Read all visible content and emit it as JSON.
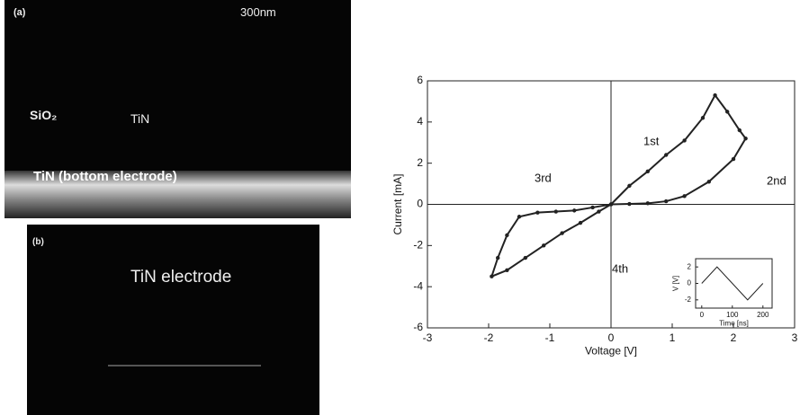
{
  "images": [
    {
      "label": "(a)",
      "scale": "300nm",
      "texts": [
        "SiO₂",
        "TiN",
        "TiN (bottom electrode)"
      ]
    },
    {
      "label": "(b)",
      "texts": [
        "TiN electrode"
      ]
    }
  ],
  "chart_data": [
    {
      "type": "line",
      "xlabel": "Voltage [V]",
      "ylabel": "Current [mA]",
      "x": [
        0,
        0.3,
        0.6,
        0.9,
        1.2,
        1.5,
        1.7,
        1.9,
        2.1,
        2.2,
        2.0,
        1.6,
        1.2,
        0.9,
        0.6,
        0.3,
        0,
        -0.3,
        -0.6,
        -0.9,
        -1.2,
        -1.5,
        -1.7,
        -1.85,
        -1.95,
        -1.7,
        -1.4,
        -1.1,
        -0.8,
        -0.5,
        -0.2,
        0
      ],
      "series": [
        {
          "color": "#222222",
          "values": [
            0,
            0.9,
            1.6,
            2.4,
            3.1,
            4.2,
            5.3,
            4.5,
            3.6,
            3.2,
            2.2,
            1.1,
            0.4,
            0.15,
            0.05,
            0.02,
            0,
            -0.15,
            -0.3,
            -0.35,
            -0.4,
            -0.6,
            -1.5,
            -2.6,
            -3.5,
            -3.2,
            -2.6,
            -2.0,
            -1.4,
            -0.9,
            -0.35,
            0
          ]
        }
      ],
      "xlim": [
        -3,
        3
      ],
      "ylim": [
        -6,
        6
      ],
      "xticks": [
        -3,
        -2,
        -1,
        0,
        1,
        2,
        3
      ],
      "yticks": [
        -6,
        -4,
        -2,
        0,
        2,
        4,
        6
      ],
      "annotations": [
        "1st",
        "2nd",
        "3rd",
        "4th"
      ]
    },
    {
      "type": "line",
      "xlabel": "Time [ns]",
      "ylabel": "V [V]",
      "x": [
        0,
        50,
        150,
        200
      ],
      "series": [
        {
          "color": "#222222",
          "values": [
            0,
            2,
            -2,
            0
          ]
        }
      ],
      "xlim": [
        -20,
        230
      ],
      "ylim": [
        -3,
        3
      ],
      "xticks": [
        0,
        100,
        200
      ],
      "yticks": [
        -2,
        0,
        2
      ]
    }
  ]
}
